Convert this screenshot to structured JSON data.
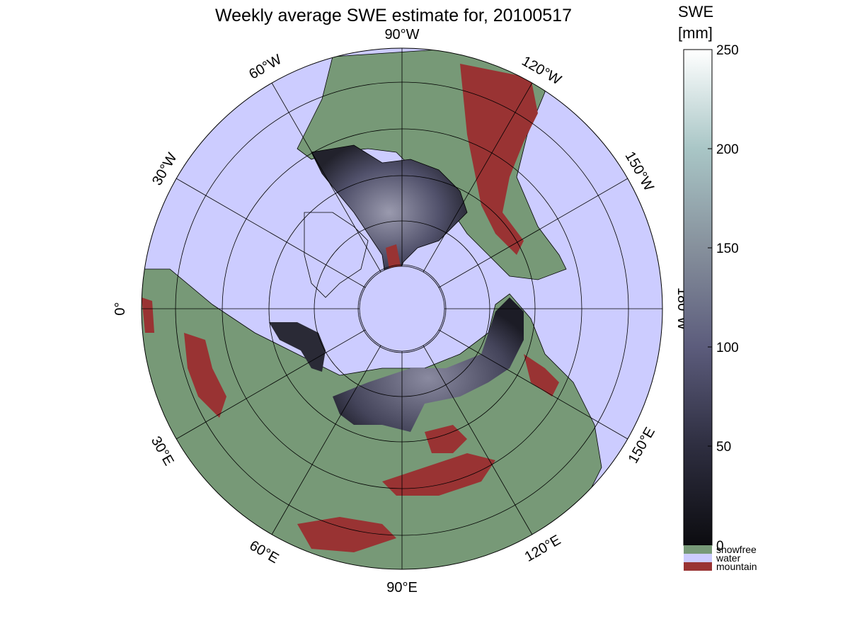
{
  "map": {
    "title": "Weekly average SWE estimate for, 20100517",
    "projection": "north polar stereographic",
    "lon_labels": {
      "lon_90W": "90°W",
      "lon_120W": "120°W",
      "lon_150W": "150°W",
      "lon_180W": "180°W",
      "lon_150E": "150°E",
      "lon_120E": "120°E",
      "lon_90E": "90°E",
      "lon_60E": "60°E",
      "lon_30E": "30°E",
      "lon_0": "0°",
      "lon_30W": "30°W",
      "lon_60W": "60°W"
    },
    "colors": {
      "water": "#ccccff",
      "snowfree": "#779977",
      "mountain": "#993333",
      "snow_low": "#1a1a24",
      "snow_high": "#ffffff"
    }
  },
  "colorbar": {
    "unit_line1": "SWE",
    "unit_line2": "[mm]",
    "ticks": [
      "0",
      "50",
      "100",
      "150",
      "200",
      "250"
    ],
    "tick_values": [
      0,
      50,
      100,
      150,
      200,
      250
    ],
    "range": [
      0,
      250
    ],
    "categories": [
      {
        "label": "snowfree",
        "color": "#779977"
      },
      {
        "label": "water",
        "color": "#ccccff"
      },
      {
        "label": "mountain",
        "color": "#993333"
      }
    ]
  }
}
